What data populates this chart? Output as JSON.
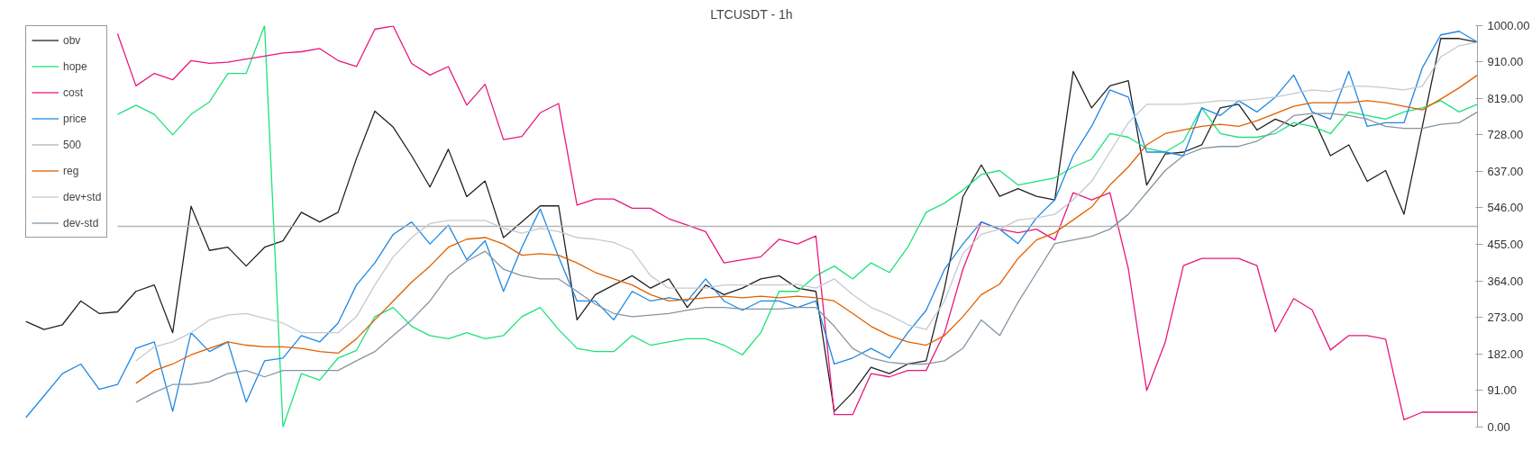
{
  "chart_data": {
    "type": "line",
    "title": "LTCUSDT - 1h",
    "categories": [
      null,
      null,
      null,
      null,
      null,
      null,
      null,
      null,
      null,
      null,
      null,
      null,
      null,
      null,
      null,
      null,
      null,
      null,
      null,
      null,
      null,
      null,
      null,
      null,
      null,
      null,
      null,
      null,
      null,
      null,
      null,
      null,
      null,
      null,
      null,
      null,
      null,
      null,
      null,
      null,
      null,
      null,
      null,
      null,
      null,
      null,
      null,
      null,
      null,
      null,
      null,
      null,
      null,
      null,
      null,
      null,
      null,
      null,
      null,
      null,
      null,
      null,
      null,
      null,
      null,
      null,
      null,
      null,
      null,
      null,
      null,
      null,
      null,
      null,
      null,
      null,
      null,
      null,
      null,
      null
    ],
    "ylim": [
      0,
      1000
    ],
    "yticks": [
      {
        "value": 0,
        "label": "0.00"
      },
      {
        "value": 91,
        "label": "91.00"
      },
      {
        "value": 182,
        "label": "182.00"
      },
      {
        "value": 273,
        "label": "273.00"
      },
      {
        "value": 364,
        "label": "364.00"
      },
      {
        "value": 455,
        "label": "455.00"
      },
      {
        "value": 546,
        "label": "546.00"
      },
      {
        "value": 637,
        "label": "637.00"
      },
      {
        "value": 728,
        "label": "728.00"
      },
      {
        "value": 819,
        "label": "819.00"
      },
      {
        "value": 910,
        "label": "910.00"
      },
      {
        "value": 1000,
        "label": "1000.00"
      }
    ],
    "tick_labels": "y",
    "grid": false,
    "legend": "top left",
    "marker": "none",
    "line_style": "solid",
    "series": [
      {
        "name": "obv",
        "color": "#222222",
        "values": [
          263,
          243,
          255,
          314,
          283,
          287,
          338,
          354,
          235,
          550,
          440,
          448,
          401,
          448,
          464,
          535,
          511,
          535,
          669,
          787,
          747,
          676,
          598,
          692,
          574,
          613,
          472,
          511,
          551,
          551,
          267,
          330,
          354,
          377,
          346,
          369,
          298,
          354,
          330,
          346,
          369,
          377,
          346,
          338,
          39,
          86,
          149,
          133,
          157,
          165,
          346,
          574,
          653,
          575,
          594,
          575,
          566,
          886,
          795,
          850,
          863,
          603,
          680,
          685,
          703,
          795,
          804,
          740,
          767,
          749,
          776,
          676,
          703,
          612,
          639,
          530,
          749,
          968,
          968,
          959
        ]
      },
      {
        "name": "hope",
        "color": "#1de27a",
        "values": [
          null,
          null,
          null,
          null,
          null,
          779,
          802,
          779,
          728,
          779,
          810,
          881,
          881,
          1000,
          0,
          133,
          117,
          172,
          191,
          275,
          298,
          251,
          228,
          220,
          235,
          220,
          228,
          275,
          298,
          243,
          196,
          188,
          188,
          228,
          204,
          212,
          220,
          220,
          204,
          180,
          235,
          338,
          338,
          377,
          401,
          369,
          409,
          385,
          448,
          535,
          558,
          590,
          629,
          639,
          603,
          612,
          621,
          648,
          667,
          731,
          722,
          694,
          685,
          712,
          795,
          731,
          722,
          722,
          731,
          758,
          749,
          731,
          785,
          776,
          767,
          785,
          795,
          813,
          785,
          804
        ]
      },
      {
        "name": "cost",
        "color": "#e8177d",
        "values": [
          null,
          null,
          null,
          null,
          null,
          980,
          850,
          881,
          865,
          913,
          906,
          909,
          917,
          924,
          932,
          935,
          943,
          913,
          898,
          991,
          999,
          906,
          877,
          898,
          802,
          854,
          716,
          724,
          783,
          806,
          553,
          568,
          568,
          545,
          545,
          519,
          503,
          487,
          409,
          417,
          424,
          468,
          456,
          476,
          31,
          31,
          133,
          125,
          141,
          141,
          235,
          393,
          511,
          493,
          484,
          493,
          466,
          584,
          566,
          584,
          395,
          91,
          210,
          402,
          420,
          420,
          420,
          402,
          237,
          320,
          292,
          192,
          228,
          228,
          219,
          18,
          37,
          37,
          37,
          37
        ]
      },
      {
        "name": "price",
        "color": "#1e88e5",
        "values": [
          23,
          78,
          133,
          157,
          94,
          106,
          196,
          212,
          39,
          235,
          188,
          212,
          62,
          165,
          172,
          228,
          212,
          259,
          354,
          409,
          480,
          511,
          456,
          503,
          417,
          464,
          338,
          448,
          543,
          424,
          314,
          314,
          267,
          338,
          314,
          322,
          314,
          369,
          314,
          291,
          314,
          314,
          298,
          314,
          157,
          172,
          196,
          172,
          235,
          291,
          393,
          456,
          511,
          493,
          457,
          521,
          566,
          676,
          749,
          840,
          822,
          685,
          685,
          676,
          795,
          776,
          813,
          785,
          822,
          877,
          785,
          767,
          886,
          749,
          758,
          758,
          895,
          977,
          986,
          959
        ]
      },
      {
        "name": "500",
        "color": "#b4b4b4",
        "values": [
          null,
          null,
          null,
          null,
          null,
          500,
          500,
          500,
          500,
          500,
          500,
          500,
          500,
          500,
          500,
          500,
          500,
          500,
          500,
          500,
          500,
          500,
          500,
          500,
          500,
          500,
          500,
          500,
          500,
          500,
          500,
          500,
          500,
          500,
          500,
          500,
          500,
          500,
          500,
          500,
          500,
          500,
          500,
          500,
          500,
          500,
          500,
          500,
          500,
          500,
          500,
          500,
          500,
          500,
          500,
          500,
          500,
          500,
          500,
          500,
          500,
          500,
          500,
          500,
          500,
          500,
          500,
          500,
          500,
          500,
          500,
          500,
          500,
          500,
          500,
          500,
          500,
          500,
          500,
          500
        ]
      },
      {
        "name": "reg",
        "color": "#e06000",
        "values": [
          null,
          null,
          null,
          null,
          null,
          null,
          109,
          141,
          157,
          180,
          196,
          212,
          204,
          200,
          200,
          196,
          188,
          184,
          220,
          267,
          314,
          361,
          401,
          448,
          468,
          472,
          456,
          428,
          432,
          428,
          409,
          385,
          369,
          354,
          330,
          314,
          318,
          322,
          326,
          322,
          326,
          322,
          326,
          322,
          314,
          283,
          251,
          228,
          212,
          204,
          228,
          275,
          330,
          356,
          420,
          466,
          484,
          516,
          548,
          603,
          648,
          703,
          731,
          740,
          749,
          754,
          749,
          763,
          781,
          799,
          808,
          808,
          808,
          813,
          808,
          799,
          790,
          817,
          845,
          877
        ]
      },
      {
        "name": "dev+std",
        "color": "#c3cad0",
        "values": [
          null,
          null,
          null,
          null,
          null,
          null,
          165,
          200,
          212,
          235,
          267,
          279,
          283,
          271,
          259,
          235,
          235,
          235,
          275,
          354,
          424,
          472,
          507,
          515,
          515,
          515,
          495,
          483,
          495,
          487,
          472,
          468,
          460,
          440,
          377,
          346,
          346,
          346,
          354,
          354,
          354,
          354,
          355,
          346,
          369,
          330,
          298,
          279,
          255,
          243,
          314,
          432,
          480,
          493,
          516,
          521,
          530,
          566,
          612,
          685,
          758,
          804,
          804,
          804,
          808,
          813,
          813,
          817,
          822,
          831,
          840,
          836,
          849,
          849,
          845,
          840,
          849,
          922,
          950,
          959
        ]
      },
      {
        "name": "dev-std",
        "color": "#8595a1",
        "values": [
          null,
          null,
          null,
          null,
          null,
          null,
          62,
          86,
          106,
          106,
          113,
          133,
          141,
          125,
          141,
          141,
          141,
          141,
          165,
          188,
          228,
          267,
          314,
          377,
          413,
          438,
          393,
          377,
          369,
          369,
          338,
          306,
          283,
          275,
          279,
          283,
          291,
          298,
          298,
          294,
          294,
          294,
          298,
          298,
          251,
          196,
          172,
          161,
          157,
          157,
          165,
          196,
          267,
          228,
          311,
          384,
          457,
          466,
          475,
          493,
          530,
          584,
          639,
          676,
          694,
          699,
          699,
          712,
          740,
          776,
          781,
          781,
          776,
          767,
          749,
          744,
          744,
          754,
          758,
          785
        ]
      }
    ]
  }
}
